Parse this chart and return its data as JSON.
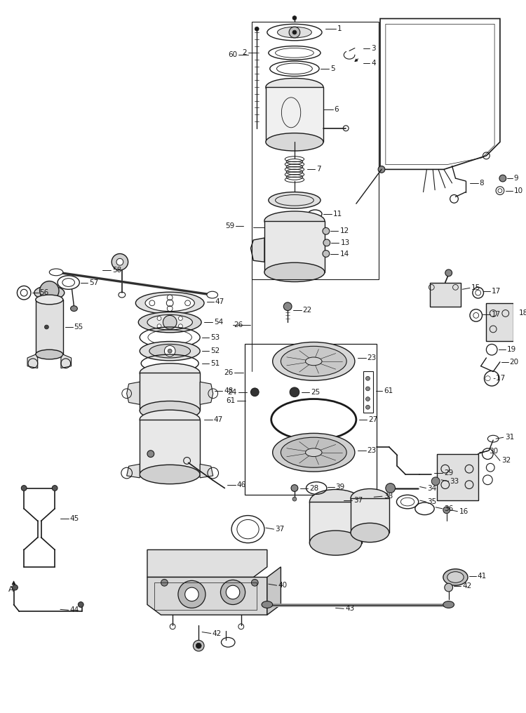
{
  "bg_color": "#ffffff",
  "lc": "#1a1a1a",
  "lw": 1.0,
  "fig_w": 7.5,
  "fig_h": 10.16,
  "dpi": 100
}
